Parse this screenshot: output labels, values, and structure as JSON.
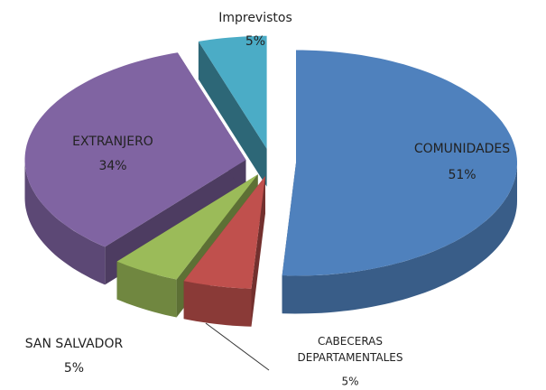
{
  "chart_data": {
    "type": "pie",
    "categories": [
      "COMUNIDADES",
      "CABECERAS DEPARTAMENTALES",
      "SAN SALVADOR",
      "EXTRANJERO",
      "Imprevistos"
    ],
    "values": [
      51,
      5,
      5,
      34,
      5
    ],
    "value_labels": [
      "51%",
      "5%",
      "5%",
      "34%",
      "5%"
    ],
    "colors": [
      "#4f81bd",
      "#c0504d",
      "#9bbb59",
      "#8064a2",
      "#4bacc6"
    ]
  }
}
